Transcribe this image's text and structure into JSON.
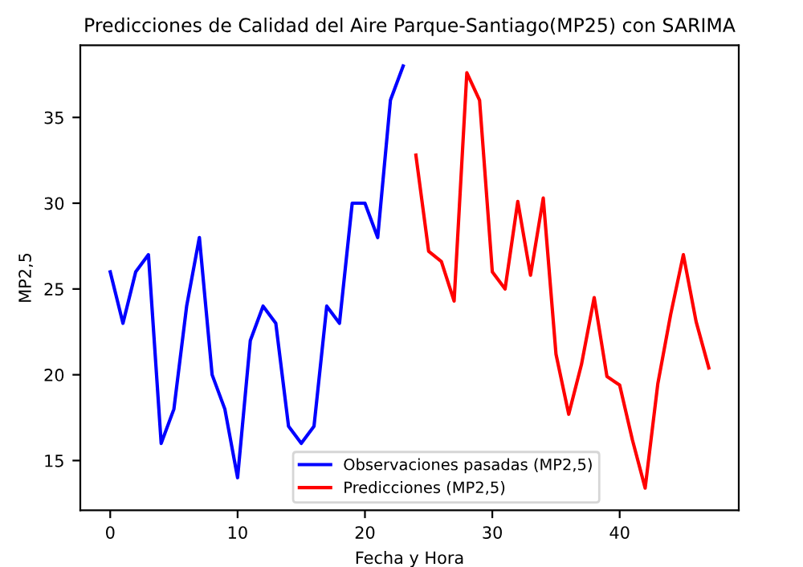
{
  "chart_data": {
    "type": "line",
    "title": "Predicciones de Calidad del Aire Parque-Santiago(MP25) con SARIMA",
    "xlabel": "Fecha y Hora",
    "ylabel": "MP2,5",
    "xlim": [
      -2.35,
      49.35
    ],
    "xticks": [
      0,
      10,
      20,
      30,
      40
    ],
    "ylim": [
      12.1,
      39.2
    ],
    "yticks": [
      15,
      20,
      25,
      30,
      35
    ],
    "legend": "bottom right",
    "grid": false,
    "series": [
      {
        "name": "Observaciones pasadas (MP2,5)",
        "color": "#0000ff",
        "x": [
          0,
          1,
          2,
          3,
          4,
          5,
          6,
          7,
          8,
          9,
          10,
          11,
          12,
          13,
          14,
          15,
          16,
          17,
          18,
          19,
          20,
          21,
          22,
          23
        ],
        "values": [
          26,
          23,
          26,
          27,
          16,
          18,
          24,
          28,
          20,
          18,
          14,
          22,
          24,
          23,
          17,
          16,
          17,
          24,
          23,
          30,
          30,
          28,
          36,
          38
        ]
      },
      {
        "name": "Predicciones (MP2,5)",
        "color": "#ff0000",
        "x": [
          24,
          25,
          26,
          27,
          28,
          29,
          30,
          31,
          32,
          33,
          34,
          35,
          36,
          37,
          38,
          39,
          40,
          41,
          42,
          43,
          44,
          45,
          46,
          47
        ],
        "values": [
          32.8,
          27.2,
          26.6,
          24.3,
          37.6,
          36,
          26,
          25,
          30.1,
          25.8,
          30.3,
          21.2,
          17.7,
          20.6,
          24.5,
          19.9,
          19.4,
          16.2,
          13.4,
          19.5,
          23.5,
          27,
          23.1,
          20.4
        ]
      }
    ]
  }
}
